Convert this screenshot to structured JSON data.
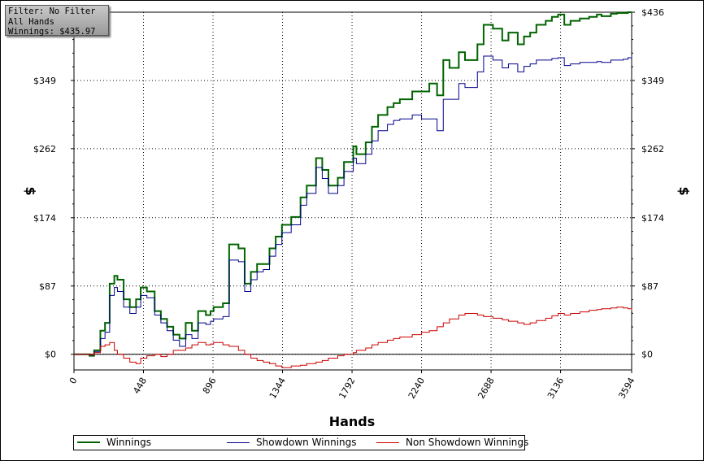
{
  "info": {
    "line1": "Filter: No Filter",
    "line2": "All Hands",
    "line3": "Winnings: $435.97"
  },
  "chart_data": {
    "type": "line",
    "title": "",
    "xlabel": "Hands",
    "ylabel": "$",
    "xlim": [
      0,
      3594
    ],
    "ylim": [
      -20,
      436
    ],
    "x_ticks": [
      0,
      448,
      896,
      1344,
      1792,
      2240,
      2688,
      3136,
      3594
    ],
    "x_tick_labels": [
      "0",
      "448",
      "896",
      "1344",
      "1792",
      "2240",
      "2688",
      "3136",
      "3594"
    ],
    "y_ticks": [
      0,
      87,
      174,
      262,
      349,
      436
    ],
    "y_tick_labels": [
      "$0",
      "$87",
      "$174",
      "$262",
      "$349",
      "$436"
    ],
    "grid": true,
    "legend_position": "bottom",
    "series": [
      {
        "name": "Winnings",
        "color": "#006400",
        "x": [
          0,
          60,
          100,
          130,
          170,
          200,
          230,
          260,
          280,
          320,
          360,
          400,
          430,
          470,
          520,
          560,
          600,
          640,
          680,
          720,
          760,
          800,
          850,
          880,
          900,
          960,
          1000,
          1060,
          1100,
          1140,
          1180,
          1220,
          1260,
          1300,
          1340,
          1400,
          1460,
          1500,
          1560,
          1600,
          1640,
          1700,
          1740,
          1800,
          1820,
          1880,
          1920,
          1960,
          2020,
          2060,
          2100,
          2180,
          2240,
          2290,
          2340,
          2380,
          2420,
          2480,
          2520,
          2600,
          2640,
          2700,
          2760,
          2800,
          2860,
          2900,
          2940,
          2980,
          3040,
          3080,
          3120,
          3160,
          3200,
          3260,
          3320,
          3370,
          3400,
          3460,
          3500,
          3540,
          3570,
          3594
        ],
        "values": [
          0,
          0,
          -2,
          5,
          30,
          40,
          90,
          100,
          95,
          70,
          60,
          70,
          85,
          80,
          55,
          45,
          35,
          25,
          20,
          40,
          30,
          55,
          50,
          55,
          60,
          65,
          140,
          135,
          90,
          105,
          115,
          115,
          135,
          150,
          165,
          175,
          200,
          215,
          250,
          235,
          215,
          225,
          245,
          265,
          255,
          270,
          290,
          305,
          315,
          320,
          325,
          335,
          335,
          345,
          330,
          375,
          365,
          385,
          375,
          395,
          420,
          415,
          400,
          410,
          395,
          405,
          410,
          420,
          425,
          430,
          433,
          420,
          425,
          428,
          430,
          433,
          431,
          434,
          435,
          435,
          436,
          436
        ]
      },
      {
        "name": "Showdown Winnings",
        "color": "#00008b",
        "x": [
          0,
          60,
          100,
          130,
          170,
          200,
          230,
          260,
          280,
          320,
          360,
          400,
          430,
          470,
          520,
          560,
          600,
          640,
          680,
          720,
          760,
          800,
          850,
          880,
          900,
          960,
          1000,
          1060,
          1100,
          1140,
          1180,
          1220,
          1260,
          1300,
          1340,
          1400,
          1460,
          1500,
          1560,
          1600,
          1640,
          1700,
          1740,
          1800,
          1820,
          1880,
          1920,
          1960,
          2020,
          2060,
          2100,
          2180,
          2240,
          2290,
          2340,
          2380,
          2420,
          2480,
          2520,
          2600,
          2640,
          2700,
          2760,
          2800,
          2860,
          2900,
          2940,
          2980,
          3040,
          3080,
          3120,
          3160,
          3200,
          3260,
          3320,
          3370,
          3400,
          3460,
          3500,
          3540,
          3570,
          3594
        ],
        "values": [
          0,
          0,
          -1,
          3,
          20,
          28,
          75,
          85,
          80,
          60,
          52,
          60,
          75,
          72,
          50,
          40,
          30,
          18,
          10,
          25,
          20,
          40,
          38,
          42,
          45,
          48,
          120,
          118,
          80,
          95,
          105,
          108,
          125,
          140,
          155,
          165,
          190,
          205,
          238,
          224,
          205,
          215,
          233,
          250,
          243,
          255,
          272,
          285,
          293,
          298,
          300,
          305,
          300,
          300,
          285,
          325,
          325,
          345,
          340,
          360,
          380,
          375,
          365,
          370,
          360,
          367,
          370,
          375,
          375,
          377,
          378,
          368,
          370,
          372,
          372,
          373,
          372,
          375,
          375,
          376,
          378,
          380
        ]
      },
      {
        "name": "Non Showdown Winnings",
        "color": "#cc0000",
        "x": [
          0,
          60,
          100,
          130,
          170,
          200,
          230,
          260,
          280,
          320,
          360,
          400,
          430,
          470,
          520,
          560,
          600,
          640,
          680,
          720,
          760,
          800,
          850,
          880,
          900,
          960,
          1000,
          1060,
          1100,
          1140,
          1180,
          1220,
          1260,
          1300,
          1340,
          1400,
          1460,
          1500,
          1560,
          1600,
          1640,
          1700,
          1740,
          1800,
          1820,
          1880,
          1920,
          1960,
          2020,
          2060,
          2100,
          2180,
          2240,
          2290,
          2340,
          2380,
          2420,
          2480,
          2520,
          2600,
          2640,
          2700,
          2760,
          2800,
          2860,
          2900,
          2940,
          2980,
          3040,
          3080,
          3120,
          3160,
          3200,
          3260,
          3320,
          3370,
          3400,
          3460,
          3500,
          3540,
          3570,
          3594
        ],
        "values": [
          0,
          0,
          -1,
          2,
          10,
          12,
          15,
          5,
          0,
          -5,
          -10,
          -12,
          -5,
          -2,
          0,
          -3,
          0,
          5,
          5,
          8,
          12,
          15,
          12,
          13,
          15,
          12,
          10,
          5,
          0,
          -5,
          -8,
          -10,
          -12,
          -15,
          -17,
          -15,
          -14,
          -12,
          -10,
          -8,
          -5,
          -2,
          0,
          2,
          5,
          8,
          12,
          15,
          18,
          20,
          22,
          25,
          28,
          30,
          35,
          40,
          45,
          50,
          52,
          50,
          48,
          46,
          44,
          42,
          40,
          38,
          40,
          43,
          46,
          49,
          52,
          50,
          52,
          54,
          56,
          57,
          58,
          59,
          60,
          59,
          58,
          56
        ]
      }
    ]
  }
}
